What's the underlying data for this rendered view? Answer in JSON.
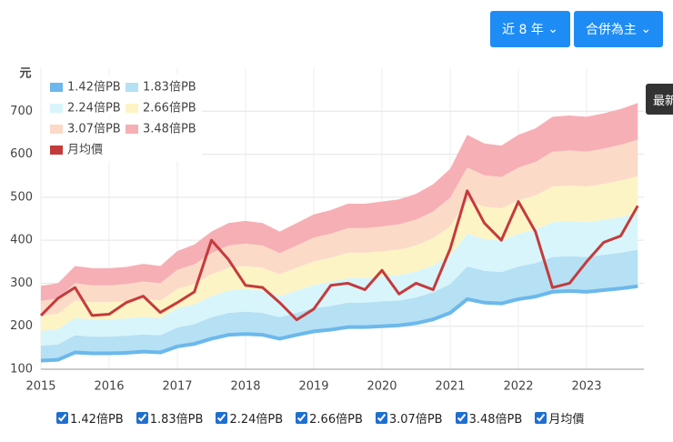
{
  "controls": {
    "period": "近 8 年",
    "basis": "合併為主",
    "latest": "最新"
  },
  "chart_data": {
    "type": "band",
    "y_label": "元",
    "x": [
      2015,
      2015.25,
      2015.5,
      2015.75,
      2016,
      2016.25,
      2016.5,
      2016.75,
      2017,
      2017.25,
      2017.5,
      2017.75,
      2018,
      2018.25,
      2018.5,
      2018.75,
      2019,
      2019.25,
      2019.5,
      2019.75,
      2020,
      2020.25,
      2020.5,
      2020.75,
      2021,
      2021.25,
      2021.5,
      2021.75,
      2022,
      2022.25,
      2022.5,
      2022.75,
      2023,
      2023.25,
      2023.5,
      2023.75
    ],
    "xlim": [
      2015,
      2023.84
    ],
    "xticks": [
      2015,
      2016,
      2017,
      2018,
      2019,
      2020,
      2021,
      2022,
      2023
    ],
    "ylim": [
      100,
      800
    ],
    "yticks": [
      100,
      200,
      300,
      400,
      500,
      600,
      700
    ],
    "grid": true,
    "series": [
      {
        "name": "1.42倍PB",
        "color": "#6bb8ec",
        "values": [
          120,
          122,
          139,
          137,
          137,
          138,
          141,
          139,
          153,
          159,
          171,
          180,
          182,
          180,
          171,
          180,
          188,
          192,
          198,
          198,
          200,
          202,
          207,
          216,
          231,
          263,
          255,
          253,
          263,
          269,
          280,
          282,
          280,
          284,
          288,
          293
        ]
      },
      {
        "name": "1.83倍PB",
        "color": "#b6e0f4",
        "values": [
          155,
          158,
          179,
          176,
          176,
          178,
          181,
          179,
          197,
          205,
          221,
          231,
          234,
          231,
          221,
          231,
          242,
          247,
          255,
          255,
          258,
          260,
          267,
          279,
          298,
          339,
          329,
          326,
          339,
          347,
          361,
          363,
          361,
          366,
          371,
          378
        ]
      },
      {
        "name": "2.24倍PB",
        "color": "#d8f5fb",
        "values": [
          189,
          193,
          219,
          216,
          216,
          218,
          222,
          219,
          242,
          251,
          270,
          283,
          287,
          283,
          270,
          283,
          296,
          303,
          312,
          312,
          316,
          319,
          327,
          341,
          365,
          415,
          403,
          399,
          415,
          425,
          442,
          444,
          442,
          448,
          454,
          463
        ]
      },
      {
        "name": "2.66倍PB",
        "color": "#fdf4c6",
        "values": [
          225,
          229,
          260,
          256,
          256,
          258,
          264,
          260,
          287,
          298,
          321,
          336,
          340,
          336,
          321,
          336,
          351,
          359,
          371,
          371,
          374,
          378,
          388,
          405,
          432,
          493,
          478,
          474,
          493,
          504,
          525,
          527,
          525,
          531,
          539,
          549
        ]
      },
      {
        "name": "3.07倍PB",
        "color": "#fcdac8",
        "values": [
          259,
          265,
          300,
          295,
          295,
          298,
          304,
          300,
          331,
          344,
          370,
          388,
          392,
          388,
          370,
          388,
          406,
          415,
          428,
          428,
          432,
          437,
          448,
          467,
          499,
          569,
          551,
          547,
          569,
          582,
          606,
          609,
          606,
          613,
          622,
          634
        ]
      },
      {
        "name": "3.48倍PB",
        "color": "#f6afb5",
        "values": [
          294,
          300,
          340,
          335,
          335,
          338,
          345,
          340,
          375,
          390,
          420,
          440,
          445,
          440,
          420,
          440,
          460,
          470,
          485,
          485,
          490,
          495,
          508,
          530,
          566,
          645,
          625,
          620,
          645,
          660,
          687,
          690,
          687,
          695,
          705,
          719
        ]
      },
      {
        "name": "月均價",
        "color": "#c43b3c",
        "line": true,
        "values": [
          225,
          265,
          290,
          225,
          228,
          255,
          270,
          232,
          255,
          280,
          400,
          355,
          295,
          290,
          255,
          215,
          240,
          295,
          300,
          285,
          330,
          275,
          300,
          285,
          380,
          515,
          440,
          400,
          490,
          420,
          290,
          300,
          350,
          395,
          410,
          480
        ]
      }
    ]
  }
}
